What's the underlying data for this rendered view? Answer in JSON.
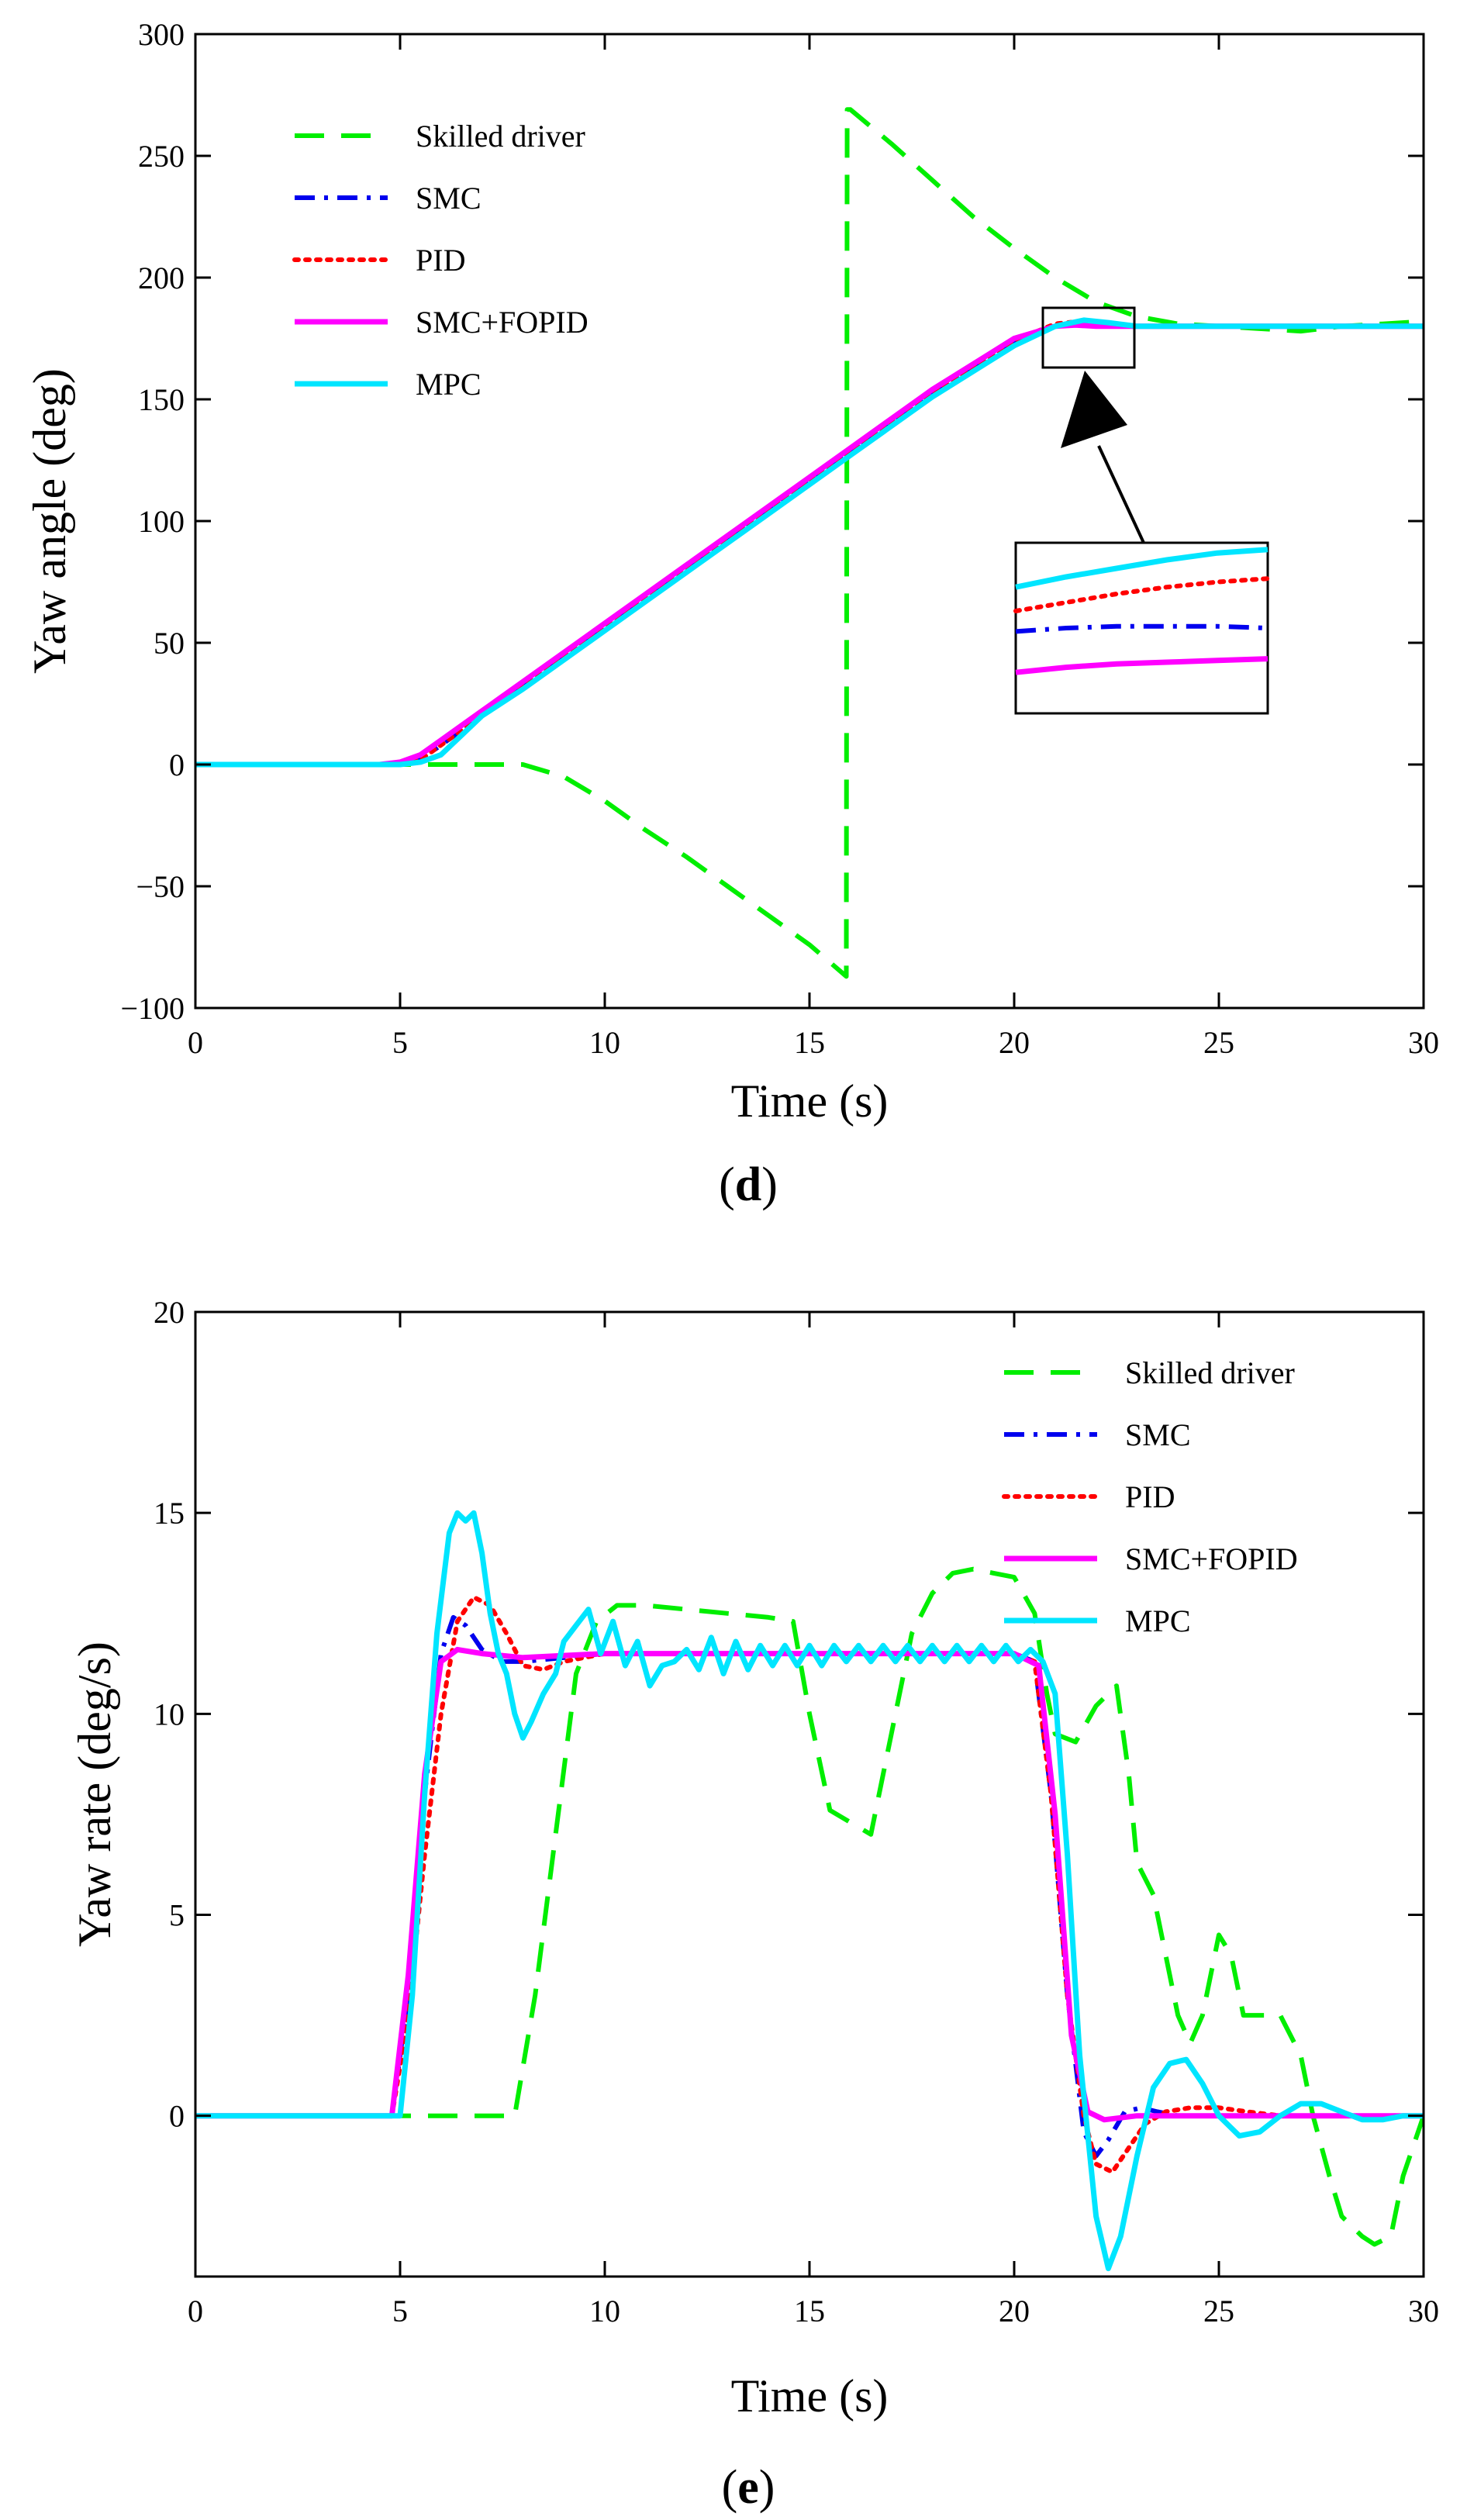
{
  "chart_data": [
    {
      "id": "d",
      "type": "line",
      "caption_letter": "d",
      "xlabel": "Time (s)",
      "ylabel": "Yaw angle (deg)",
      "xlim": [
        0,
        30
      ],
      "ylim": [
        -100,
        300
      ],
      "xticks": [
        0,
        5,
        10,
        15,
        20,
        25,
        30
      ],
      "yticks": [
        -100,
        -50,
        0,
        50,
        100,
        150,
        200,
        250,
        300
      ],
      "ytick_labels": [
        "−100",
        "−50",
        "0",
        "50",
        "100",
        "150",
        "200",
        "250",
        "300"
      ],
      "grid": false,
      "legend_position": "top-left",
      "series": [
        {
          "name": "Skilled driver",
          "color": "#00ee00",
          "style": "dashed",
          "x": [
            0,
            5,
            8,
            9,
            10,
            11,
            12,
            13,
            14,
            15,
            15.9,
            15.92,
            16,
            17,
            18,
            19,
            20,
            21,
            22,
            23,
            24,
            25,
            26,
            27,
            28,
            29,
            30
          ],
          "y": [
            0,
            0,
            0,
            -5,
            -15,
            -27,
            -38,
            -50,
            -62,
            -74,
            -87,
            269,
            269,
            255,
            240,
            225,
            212,
            200,
            190,
            184,
            181,
            180,
            179,
            178,
            180,
            181,
            182
          ]
        },
        {
          "name": "SMC",
          "color": "#0000ee",
          "style": "dashdot",
          "x": [
            0,
            4.5,
            5,
            5.5,
            6,
            7,
            8,
            10,
            12,
            14,
            16,
            18,
            20,
            21,
            21.5,
            22,
            23,
            25,
            30
          ],
          "y": [
            0,
            0,
            0.5,
            2,
            8,
            20,
            32,
            56,
            80,
            104,
            128,
            152,
            173,
            180,
            181,
            180.5,
            180,
            180,
            180
          ]
        },
        {
          "name": "PID",
          "color": "#ff0000",
          "style": "dotted",
          "x": [
            0,
            4.5,
            5,
            5.5,
            6,
            7,
            8,
            10,
            12,
            14,
            16,
            18,
            20,
            21,
            21.6,
            22,
            23,
            25,
            30
          ],
          "y": [
            0,
            0,
            0.5,
            2,
            8,
            20,
            32,
            56,
            80,
            104,
            128,
            152,
            174,
            181,
            182,
            181,
            180,
            180,
            180
          ]
        },
        {
          "name": "SMC+FOPID",
          "color": "#ff00ff",
          "style": "solid",
          "x": [
            0,
            4.5,
            5,
            5.5,
            6,
            7,
            8,
            10,
            12,
            14,
            16,
            18,
            20,
            21,
            21.5,
            22,
            23,
            25,
            30
          ],
          "y": [
            0,
            0,
            1,
            4,
            10,
            22,
            34,
            58,
            82,
            106,
            130,
            154,
            175,
            180,
            180.5,
            180,
            180,
            180,
            180
          ]
        },
        {
          "name": "MPC",
          "color": "#00e5ff",
          "style": "solid",
          "x": [
            0,
            5,
            5.5,
            6,
            6.5,
            7,
            8,
            10,
            12,
            14,
            16,
            18,
            20,
            21,
            21.7,
            22.3,
            23,
            25,
            30
          ],
          "y": [
            0,
            0,
            1,
            4,
            12,
            20,
            31,
            55,
            79,
            103,
            127,
            151,
            172,
            180,
            182.5,
            181.5,
            180,
            180,
            180
          ]
        }
      ],
      "inset": {
        "series_y": {
          "MPC": [
            0.26,
            0.2,
            0.15,
            0.1,
            0.06,
            0.04
          ],
          "PID": [
            0.4,
            0.35,
            0.3,
            0.26,
            0.23,
            0.21
          ],
          "SMC": [
            0.52,
            0.5,
            0.49,
            0.49,
            0.49,
            0.5
          ],
          "SMC+FOPID": [
            0.76,
            0.73,
            0.71,
            0.7,
            0.69,
            0.68
          ]
        }
      },
      "legend": [
        "Skilled driver",
        "SMC",
        "PID",
        "SMC+FOPID",
        "MPC"
      ]
    },
    {
      "id": "e",
      "type": "line",
      "caption_letter": "e",
      "xlabel": "Time (s)",
      "ylabel": "Yaw rate (deg/s)",
      "xlim": [
        0,
        30
      ],
      "ylim": [
        -4,
        20
      ],
      "xticks": [
        0,
        5,
        10,
        15,
        20,
        25,
        30
      ],
      "yticks": [
        0,
        5,
        10,
        15,
        20
      ],
      "ytick_labels": [
        "0",
        "5",
        "10",
        "15",
        "20"
      ],
      "grid": false,
      "legend_position": "top-right",
      "series": [
        {
          "name": "Skilled driver",
          "color": "#00ee00",
          "style": "dashed",
          "x": [
            0,
            7.8,
            8.3,
            8.8,
            9.3,
            9.8,
            10.3,
            11,
            12,
            13,
            14,
            14.6,
            15,
            15.5,
            16,
            16.5,
            17,
            17.5,
            18,
            18.5,
            19,
            19.5,
            20,
            20.5,
            20.8,
            21,
            21.5,
            22,
            22.5,
            22.8,
            23,
            23.4,
            24,
            24.3,
            24.6,
            25,
            25.3,
            25.6,
            26,
            26.5,
            27,
            27.3,
            27.7,
            28,
            28.5,
            28.8,
            29.2,
            29.5,
            30
          ],
          "y": [
            0,
            0,
            3,
            7,
            11,
            12.3,
            12.7,
            12.7,
            12.6,
            12.5,
            12.4,
            12.3,
            10,
            7.6,
            7.3,
            7.0,
            9.5,
            12,
            13,
            13.5,
            13.6,
            13.5,
            13.4,
            12.5,
            10.5,
            9.5,
            9.3,
            10.2,
            10.7,
            8.5,
            6.3,
            5.5,
            2.5,
            1.8,
            2.5,
            4.5,
            4.0,
            2.5,
            2.5,
            2.5,
            1.5,
            0,
            -1.5,
            -2.5,
            -3,
            -3.2,
            -3,
            -1.5,
            0
          ]
        },
        {
          "name": "SMC",
          "color": "#0000ee",
          "style": "dashdot",
          "x": [
            0,
            4.8,
            5.2,
            5.6,
            6.0,
            6.3,
            6.6,
            7.0,
            7.5,
            8.0,
            9.0,
            10,
            12,
            14,
            16,
            18,
            20,
            20.5,
            20.9,
            21.3,
            21.7,
            22.0,
            22.3,
            22.7,
            23.1,
            23.5,
            24,
            25,
            30
          ],
          "y": [
            0,
            0,
            3,
            8,
            11.5,
            12.4,
            12.2,
            11.6,
            11.3,
            11.3,
            11.4,
            11.5,
            11.5,
            11.5,
            11.5,
            11.5,
            11.5,
            11.3,
            8,
            3,
            -0.4,
            -1,
            -0.6,
            0.1,
            0.2,
            0.1,
            0,
            0,
            0
          ]
        },
        {
          "name": "PID",
          "color": "#ff0000",
          "style": "dotted",
          "x": [
            0,
            4.8,
            5.2,
            5.6,
            6.0,
            6.4,
            6.8,
            7.2,
            7.6,
            8.0,
            8.5,
            9.0,
            10,
            12,
            14,
            16,
            18,
            20,
            20.5,
            20.9,
            21.3,
            21.7,
            22.0,
            22.4,
            22.8,
            23.2,
            23.7,
            24.3,
            25,
            25.7,
            26.5,
            30
          ],
          "y": [
            0,
            0,
            2.5,
            6.5,
            10,
            12.3,
            12.9,
            12.7,
            12,
            11.2,
            11.1,
            11.3,
            11.5,
            11.5,
            11.5,
            11.5,
            11.5,
            11.5,
            11.3,
            8,
            3,
            0,
            -1.2,
            -1.4,
            -0.8,
            -0.2,
            0.1,
            0.2,
            0.2,
            0.1,
            0,
            0
          ]
        },
        {
          "name": "SMC+FOPID",
          "color": "#ff00ff",
          "style": "solid",
          "x": [
            0,
            4.8,
            5.2,
            5.6,
            6.0,
            6.4,
            7.0,
            8.0,
            10,
            12,
            14,
            16,
            18,
            20,
            20.6,
            21.0,
            21.4,
            21.8,
            22.2,
            23,
            30
          ],
          "y": [
            0,
            0,
            3.5,
            8.5,
            11.3,
            11.6,
            11.5,
            11.4,
            11.5,
            11.5,
            11.5,
            11.5,
            11.5,
            11.5,
            11.2,
            7.5,
            2,
            0.1,
            -0.1,
            0,
            0
          ]
        },
        {
          "name": "MPC",
          "color": "#00e5ff",
          "style": "solid",
          "x": [
            0,
            5.0,
            5.3,
            5.6,
            5.9,
            6.2,
            6.4,
            6.6,
            6.8,
            7.0,
            7.2,
            7.4,
            7.6,
            7.8,
            8.0,
            8.2,
            8.5,
            8.8,
            9.0,
            9.3,
            9.6,
            9.9,
            10.2,
            10.5,
            10.8,
            11.1,
            11.4,
            11.7,
            12.0,
            12.3,
            12.6,
            12.9,
            13.2,
            13.5,
            13.8,
            14.1,
            14.4,
            14.7,
            15.0,
            15.3,
            15.6,
            15.9,
            16.2,
            16.5,
            16.8,
            17.1,
            17.4,
            17.7,
            18.0,
            18.3,
            18.6,
            18.9,
            19.2,
            19.5,
            19.8,
            20.1,
            20.4,
            20.7,
            21.0,
            21.3,
            21.6,
            22.0,
            22.3,
            22.6,
            23.0,
            23.4,
            23.8,
            24.2,
            24.6,
            25.0,
            25.5,
            26.0,
            26.5,
            27.0,
            27.5,
            28.0,
            28.5,
            29,
            29.5,
            30
          ],
          "y": [
            0,
            0,
            3,
            8,
            12,
            14.5,
            15,
            14.8,
            15,
            14,
            12.5,
            11.5,
            11,
            10,
            9.4,
            9.8,
            10.5,
            11,
            11.8,
            12.2,
            12.6,
            11.5,
            12.3,
            11.2,
            11.8,
            10.7,
            11.2,
            11.3,
            11.6,
            11.1,
            11.9,
            11.0,
            11.8,
            11.1,
            11.7,
            11.2,
            11.7,
            11.2,
            11.7,
            11.2,
            11.7,
            11.3,
            11.7,
            11.3,
            11.7,
            11.3,
            11.7,
            11.3,
            11.7,
            11.3,
            11.7,
            11.3,
            11.7,
            11.3,
            11.7,
            11.3,
            11.6,
            11.3,
            10.5,
            6.5,
            1.5,
            -2.5,
            -3.8,
            -3,
            -1,
            0.7,
            1.3,
            1.4,
            0.8,
            0,
            -0.5,
            -0.4,
            0,
            0.3,
            0.3,
            0.1,
            -0.1,
            -0.1,
            0,
            0
          ]
        }
      ],
      "legend": [
        "Skilled driver",
        "SMC",
        "PID",
        "SMC+FOPID",
        "MPC"
      ]
    }
  ]
}
